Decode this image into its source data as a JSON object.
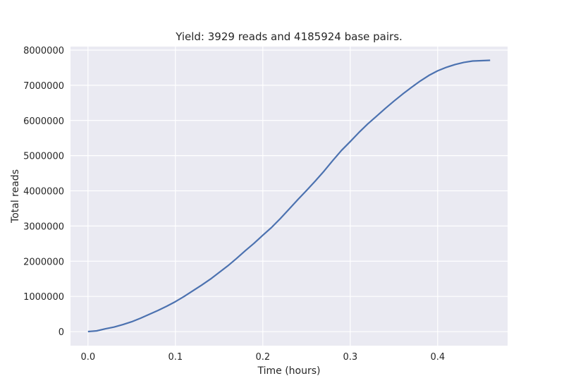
{
  "chart_data": {
    "type": "line",
    "title": "Yield: 3929 reads and 4185924 base pairs.",
    "xlabel": "Time (hours)",
    "ylabel": "Total reads",
    "xlim": [
      -0.02,
      0.48
    ],
    "ylim": [
      -400000,
      8100000
    ],
    "x_ticks": [
      0.0,
      0.1,
      0.2,
      0.3,
      0.4
    ],
    "x_tick_labels": [
      "0.0",
      "0.1",
      "0.2",
      "0.3",
      "0.4"
    ],
    "y_ticks": [
      0,
      1000000,
      2000000,
      3000000,
      4000000,
      5000000,
      6000000,
      7000000,
      8000000
    ],
    "y_tick_labels": [
      "0",
      "1000000",
      "2000000",
      "3000000",
      "4000000",
      "5000000",
      "6000000",
      "7000000",
      "8000000"
    ],
    "grid": true,
    "background_color": "#EAEAF2",
    "grid_color": "#FFFFFF",
    "series": [
      {
        "color": "#4C72B0",
        "x": [
          0.0,
          0.01,
          0.02,
          0.03,
          0.04,
          0.05,
          0.06,
          0.07,
          0.08,
          0.09,
          0.1,
          0.11,
          0.12,
          0.13,
          0.14,
          0.15,
          0.16,
          0.17,
          0.18,
          0.19,
          0.2,
          0.21,
          0.22,
          0.23,
          0.24,
          0.25,
          0.26,
          0.27,
          0.28,
          0.29,
          0.3,
          0.31,
          0.32,
          0.33,
          0.34,
          0.35,
          0.36,
          0.37,
          0.38,
          0.39,
          0.4,
          0.41,
          0.42,
          0.43,
          0.44,
          0.45,
          0.46
        ],
        "y": [
          0,
          20000,
          80000,
          130000,
          200000,
          280000,
          380000,
          490000,
          600000,
          720000,
          850000,
          1000000,
          1160000,
          1320000,
          1490000,
          1680000,
          1870000,
          2080000,
          2300000,
          2510000,
          2740000,
          2960000,
          3210000,
          3480000,
          3750000,
          4010000,
          4280000,
          4560000,
          4860000,
          5150000,
          5400000,
          5660000,
          5900000,
          6120000,
          6340000,
          6550000,
          6750000,
          6940000,
          7120000,
          7280000,
          7410000,
          7510000,
          7590000,
          7650000,
          7690000,
          7700000,
          7710000
        ]
      }
    ]
  }
}
